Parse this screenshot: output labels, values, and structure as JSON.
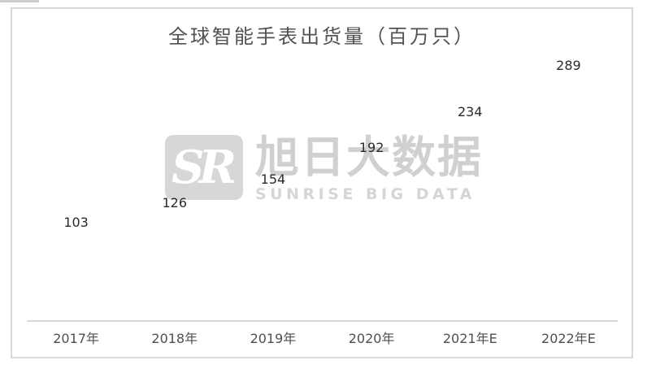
{
  "chart_data": {
    "type": "bar",
    "title": "全球智能手表出货量（百万只）",
    "categories": [
      "2017年",
      "2018年",
      "2019年",
      "2020年",
      "2021年E",
      "2022年E"
    ],
    "values": [
      103,
      126,
      154,
      192,
      234,
      289
    ],
    "xlabel": "",
    "ylabel": "",
    "ylim": [
      0,
      310
    ],
    "grid": false,
    "legend": "none",
    "data_labels": [
      103,
      126,
      154,
      192,
      234,
      289
    ],
    "colors": {
      "bar_center": "#156fc0",
      "bar_edge": "#0b3c6e",
      "axis_line": "#d9d9d9",
      "frame_border": "#d9d9d9",
      "value_label": "#2b2b2b",
      "tick_label": "#4f4f4f",
      "title": "#525252"
    }
  },
  "watermark": {
    "logo_text": "SR",
    "name_cn": "旭日大数据",
    "name_en": "SUNRISE BIG DATA",
    "color": "#b0b0b0"
  }
}
